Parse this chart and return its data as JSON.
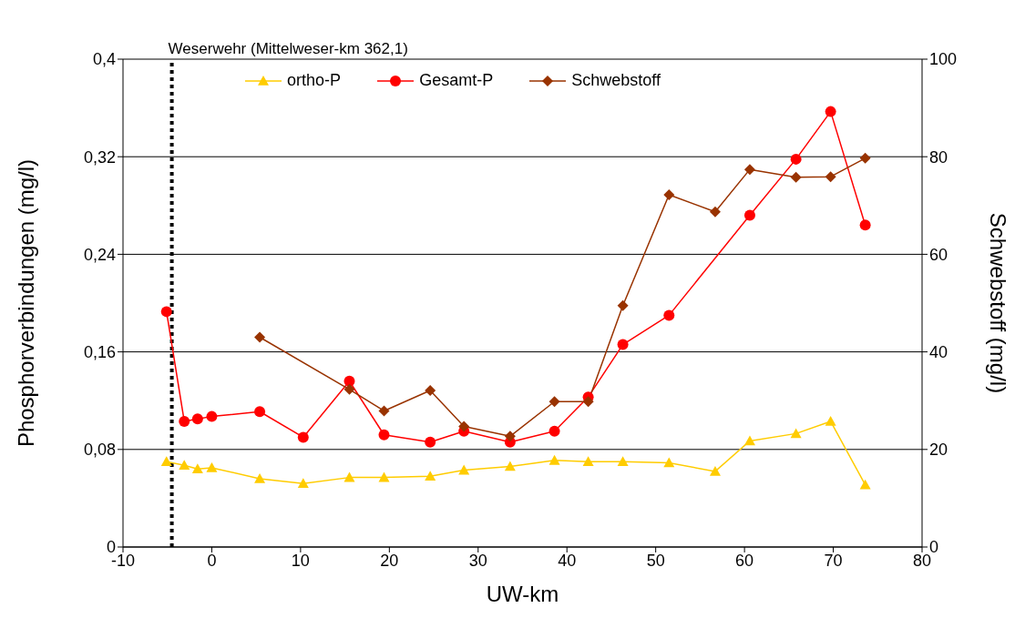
{
  "chart_data": {
    "type": "line",
    "xlabel": "UW-km",
    "ylabel": "Phosphorverbindungen (mg/l)",
    "y2label": "Schwebstoff (mg/l)",
    "xlim": [
      -10,
      80
    ],
    "xticks": [
      -10,
      0,
      10,
      20,
      30,
      40,
      50,
      60,
      70,
      80
    ],
    "ylim": [
      0,
      0.4
    ],
    "yticks": [
      {
        "value": 0,
        "label": "0"
      },
      {
        "value": 0.08,
        "label": "0,08"
      },
      {
        "value": 0.16,
        "label": "0,16"
      },
      {
        "value": 0.24,
        "label": "0,24"
      },
      {
        "value": 0.32,
        "label": "0,32"
      },
      {
        "value": 0.4,
        "label": "0,4"
      }
    ],
    "y2lim": [
      0,
      100
    ],
    "y2ticks": [
      0,
      20,
      40,
      60,
      80,
      100
    ],
    "grid": "y",
    "legend": "top",
    "line_style": "solid",
    "ref_lines": [
      {
        "axis": "x",
        "value": -4.5,
        "label": "Weserwehr (Mittelweser-km 362,1)",
        "color": "#000000",
        "line_style": "dotted"
      }
    ],
    "series": [
      {
        "name": "ortho-P",
        "color": "#ffcc00",
        "marker": "triangle",
        "x": [
          -5.1,
          -3.1,
          -1.6,
          0,
          5.4,
          10.3,
          15.5,
          19.4,
          24.6,
          28.4,
          33.6,
          38.6,
          42.4,
          46.3,
          51.5,
          56.7,
          60.6,
          65.8,
          69.7,
          73.6
        ],
        "values": [
          0.07,
          0.067,
          0.064,
          0.065,
          0.056,
          0.052,
          0.057,
          0.057,
          0.058,
          0.063,
          0.066,
          0.071,
          0.07,
          0.07,
          0.069,
          0.062,
          0.087,
          0.093,
          0.103,
          0.051
        ]
      },
      {
        "name": "Gesamt-P",
        "color": "#ff0000",
        "marker": "circle",
        "x": [
          -5.1,
          -3.1,
          -1.6,
          0,
          5.4,
          10.3,
          15.5,
          19.4,
          24.6,
          28.4,
          33.6,
          38.6,
          42.4,
          46.3,
          51.5,
          60.6,
          65.8,
          69.7,
          73.6
        ],
        "values": [
          0.193,
          0.103,
          0.105,
          0.107,
          0.111,
          0.09,
          0.136,
          0.092,
          0.086,
          0.095,
          0.086,
          0.095,
          0.123,
          0.166,
          0.19,
          0.272,
          0.318,
          0.357,
          0.264
        ]
      },
      {
        "name": "Schwebstoff",
        "color": "#993300",
        "marker": "diamond",
        "axis": "y2",
        "x": [
          5.4,
          15.5,
          19.4,
          24.6,
          28.4,
          33.6,
          38.6,
          42.4,
          46.3,
          51.5,
          56.7,
          60.6,
          65.8,
          69.7,
          73.6
        ],
        "values": [
          43.0,
          32.3,
          27.9,
          32.1,
          24.7,
          22.7,
          29.8,
          29.8,
          49.5,
          72.2,
          68.7,
          77.4,
          75.8,
          75.9,
          79.7
        ]
      }
    ]
  }
}
